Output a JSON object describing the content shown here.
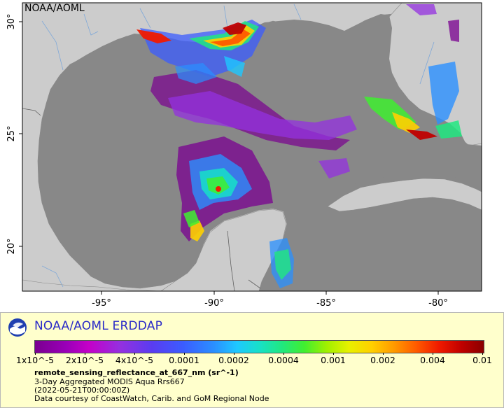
{
  "map": {
    "corner_label": "NOAA/AOML",
    "x_ticks": [
      "-95°",
      "-90°",
      "-85°",
      "-80°"
    ],
    "y_ticks": [
      "30°",
      "25°",
      "20°"
    ],
    "colors": {
      "ocean": "#888888",
      "land": "#cccccc",
      "border": "#606060",
      "river": "#7fa8d8"
    }
  },
  "legend": {
    "title": "NOAA/AOML ERDDAP",
    "ticks": [
      "1x10^-5",
      "2x10^-5",
      "4x10^-5",
      "0.0001",
      "0.0002",
      "0.0004",
      "0.001",
      "0.002",
      "0.004",
      "0.01"
    ],
    "variable": "remote_sensing_reflectance_at_667_nm (sr^-1)",
    "dataset": "3-Day Aggregated MODIS Aqua Rrs667",
    "time": "(2022-05-21T00:00:00Z)",
    "credit": "Data courtesy of CoastWatch, Carib. and GoM Regional Node",
    "colorbar_colors": [
      "#7a0090",
      "#c400c8",
      "#5a3cf0",
      "#2a90ff",
      "#18e0c8",
      "#40ee30",
      "#e8f000",
      "#ff9a00",
      "#f01a00",
      "#8a0000"
    ]
  }
}
